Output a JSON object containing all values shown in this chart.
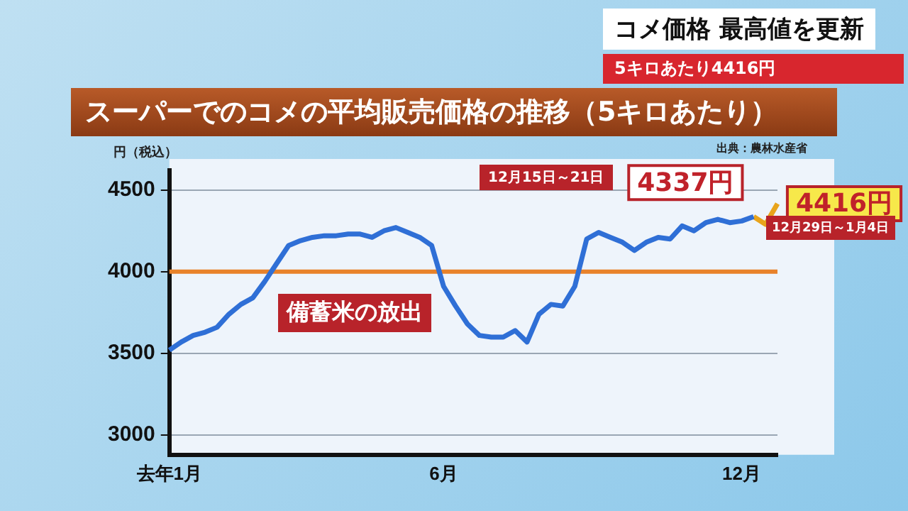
{
  "chart_data": {
    "type": "line",
    "title": "スーパーでのコメの平均販売価格の推移（5キロあたり）",
    "ylabel": "円（税込）",
    "categories": [
      "去年1月",
      null,
      null,
      null,
      null,
      null,
      null,
      null,
      null,
      null,
      null,
      null,
      null,
      null,
      null,
      null,
      null,
      null,
      null,
      null,
      null,
      null,
      null,
      "6月",
      null,
      null,
      null,
      null,
      null,
      null,
      null,
      null,
      null,
      null,
      null,
      null,
      null,
      null,
      null,
      null,
      null,
      null,
      null,
      null,
      null,
      null,
      null,
      null,
      "12月",
      null,
      null,
      null
    ],
    "series": [
      {
        "color": "#2f6fd6",
        "values": [
          3520,
          3570,
          3610,
          3630,
          3660,
          3740,
          3800,
          3840,
          3940,
          4050,
          4160,
          4190,
          4210,
          4220,
          4220,
          4230,
          4230,
          4210,
          4250,
          4270,
          4240,
          4210,
          4160,
          3910,
          3790,
          3680,
          3610,
          3600,
          3600,
          3640,
          3570,
          3740,
          3800,
          3790,
          3910,
          4200,
          4240,
          4210,
          4180,
          4130,
          4180,
          4210,
          4200,
          4280,
          4250,
          4300,
          4320,
          4300,
          4310,
          4337,
          null,
          null
        ],
        "value_labels": [
          null,
          null,
          null,
          null,
          null,
          null,
          null,
          null,
          null,
          null,
          null,
          null,
          null,
          null,
          null,
          null,
          null,
          null,
          null,
          null,
          null,
          null,
          null,
          null,
          null,
          null,
          null,
          null,
          null,
          null,
          null,
          null,
          null,
          null,
          null,
          null,
          null,
          null,
          null,
          null,
          null,
          null,
          null,
          null,
          null,
          null,
          null,
          null,
          null,
          "4337円",
          null,
          null
        ]
      },
      {
        "color": "#e8a41c",
        "values": [
          null,
          null,
          null,
          null,
          null,
          null,
          null,
          null,
          null,
          null,
          null,
          null,
          null,
          null,
          null,
          null,
          null,
          null,
          null,
          null,
          null,
          null,
          null,
          null,
          null,
          null,
          null,
          null,
          null,
          null,
          null,
          null,
          null,
          null,
          null,
          null,
          null,
          null,
          null,
          null,
          null,
          null,
          null,
          null,
          null,
          null,
          null,
          null,
          null,
          4337,
          4290,
          4416
        ],
        "value_labels": [
          null,
          null,
          null,
          null,
          null,
          null,
          null,
          null,
          null,
          null,
          null,
          null,
          null,
          null,
          null,
          null,
          null,
          null,
          null,
          null,
          null,
          null,
          null,
          null,
          null,
          null,
          null,
          null,
          null,
          null,
          null,
          null,
          null,
          null,
          null,
          null,
          null,
          null,
          null,
          null,
          null,
          null,
          null,
          null,
          null,
          null,
          null,
          null,
          null,
          null,
          null,
          "4416円"
        ]
      }
    ],
    "ylim": [
      2880,
      4620
    ],
    "yticks": [
      3000,
      3500,
      4000,
      4500
    ],
    "grid": "y",
    "ref_lines": [
      {
        "axis": "y",
        "value": 4000,
        "color": "#e8822a"
      }
    ],
    "annotations": [
      "出典：農林水産省",
      "備蓄米の放出",
      "12月15日～21日",
      "12月29日～1月4日",
      "コメ価格 最高値を更新",
      "5キロあたり4416円"
    ]
  }
}
